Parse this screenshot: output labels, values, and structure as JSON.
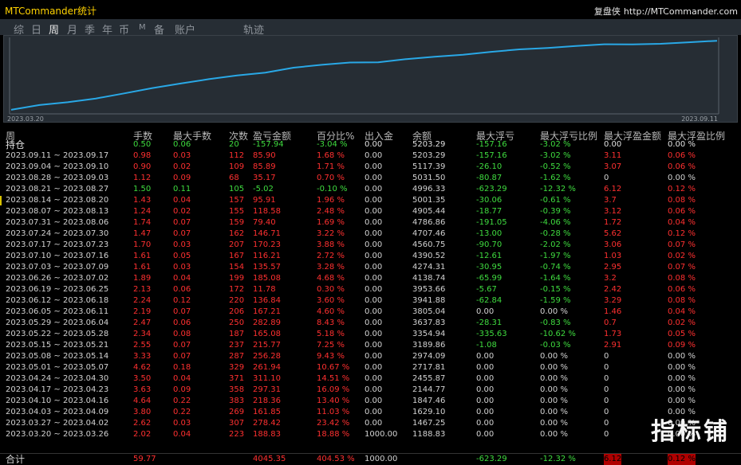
{
  "titlebar": {
    "app_title": "MTCommander统计",
    "brand_name": "复盘侠",
    "brand_url": "http://MTCommander.com"
  },
  "toolbar": {
    "items": [
      "综",
      "日",
      "周",
      "月",
      "季",
      "年",
      "币",
      "M",
      "备",
      "账户",
      "轨迹"
    ],
    "active": "周"
  },
  "chart": {
    "start_label": "2023.03.20",
    "end_label": "2023.09.11",
    "line_color": "#29a8e6",
    "chart_data": {
      "type": "line",
      "title": "",
      "xlabel": "",
      "ylabel": "",
      "x": [
        "2023.03.20",
        "2023.03.27",
        "2023.04.03",
        "2023.04.10",
        "2023.04.17",
        "2023.04.24",
        "2023.05.01",
        "2023.05.08",
        "2023.05.15",
        "2023.05.22",
        "2023.05.29",
        "2023.06.05",
        "2023.06.12",
        "2023.06.19",
        "2023.06.26",
        "2023.07.03",
        "2023.07.10",
        "2023.07.17",
        "2023.07.24",
        "2023.07.31",
        "2023.08.07",
        "2023.08.14",
        "2023.08.21",
        "2023.08.28",
        "2023.09.04",
        "2023.09.11"
      ],
      "series": [
        {
          "values": [
            1188.83,
            1467.25,
            1629.1,
            1847.46,
            2144.77,
            2455.87,
            2717.81,
            2974.09,
            3189.86,
            3354.94,
            3637.83,
            3805.04,
            3941.88,
            3953.66,
            4138.74,
            4274.31,
            4390.52,
            4560.75,
            4707.46,
            4786.86,
            4905.44,
            5001.35,
            4996.33,
            5031.5,
            5117.39,
            5203.29
          ]
        }
      ],
      "ylim": [
        1000,
        5400
      ]
    }
  },
  "table": {
    "headers": [
      "周",
      "手数",
      "最大手数",
      "次数",
      "盈亏金额",
      "百分比%",
      "出入金",
      "余额",
      "最大浮亏",
      "最大浮亏比例",
      "最大浮盈金额",
      "最大浮盈比例"
    ],
    "holding": {
      "label": "持仓",
      "cells": [
        "0.50",
        "0.06",
        "20",
        "-157.94",
        "-3.04 %",
        "0.00",
        "5203.29",
        "-157.16",
        "-3.02 %",
        "0.00",
        "0.00 %"
      ]
    },
    "rows": [
      [
        "2023.09.11 ~ 2023.09.17",
        "0.98",
        "0.03",
        "112",
        "85.90",
        "1.68 %",
        "0.00",
        "5203.29",
        "-157.16",
        "-3.02 %",
        "3.11",
        "0.06 %"
      ],
      [
        "2023.09.04 ~ 2023.09.10",
        "0.90",
        "0.02",
        "109",
        "85.89",
        "1.71 %",
        "0.00",
        "5117.39",
        "-26.10",
        "-0.52 %",
        "3.07",
        "0.06 %"
      ],
      [
        "2023.08.28 ~ 2023.09.03",
        "1.12",
        "0.09",
        "68",
        "35.17",
        "0.70 %",
        "0.00",
        "5031.50",
        "-80.87",
        "-1.62 %",
        "0",
        "0.00 %"
      ],
      [
        "2023.08.21 ~ 2023.08.27",
        "1.50",
        "0.11",
        "105",
        "-5.02",
        "-0.10 %",
        "0.00",
        "4996.33",
        "-623.29",
        "-12.32 %",
        "6.12",
        "0.12 %"
      ],
      [
        "2023.08.14 ~ 2023.08.20",
        "1.43",
        "0.04",
        "157",
        "95.91",
        "1.96 %",
        "0.00",
        "5001.35",
        "-30.06",
        "-0.61 %",
        "3.7",
        "0.08 %"
      ],
      [
        "2023.08.07 ~ 2023.08.13",
        "1.24",
        "0.02",
        "155",
        "118.58",
        "2.48 %",
        "0.00",
        "4905.44",
        "-18.77",
        "-0.39 %",
        "3.12",
        "0.06 %"
      ],
      [
        "2023.07.31 ~ 2023.08.06",
        "1.74",
        "0.07",
        "159",
        "79.40",
        "1.69 %",
        "0.00",
        "4786.86",
        "-191.05",
        "-4.06 %",
        "1.72",
        "0.04 %"
      ],
      [
        "2023.07.24 ~ 2023.07.30",
        "1.47",
        "0.07",
        "162",
        "146.71",
        "3.22 %",
        "0.00",
        "4707.46",
        "-13.00",
        "-0.28 %",
        "5.62",
        "0.12 %"
      ],
      [
        "2023.07.17 ~ 2023.07.23",
        "1.70",
        "0.03",
        "207",
        "170.23",
        "3.88 %",
        "0.00",
        "4560.75",
        "-90.70",
        "-2.02 %",
        "3.06",
        "0.07 %"
      ],
      [
        "2023.07.10 ~ 2023.07.16",
        "1.61",
        "0.05",
        "167",
        "116.21",
        "2.72 %",
        "0.00",
        "4390.52",
        "-12.61",
        "-1.97 %",
        "1.03",
        "0.02 %"
      ],
      [
        "2023.07.03 ~ 2023.07.09",
        "1.61",
        "0.03",
        "154",
        "135.57",
        "3.28 %",
        "0.00",
        "4274.31",
        "-30.95",
        "-0.74 %",
        "2.95",
        "0.07 %"
      ],
      [
        "2023.06.26 ~ 2023.07.02",
        "1.89",
        "0.04",
        "199",
        "185.08",
        "4.68 %",
        "0.00",
        "4138.74",
        "-65.99",
        "-1.64 %",
        "3.2",
        "0.08 %"
      ],
      [
        "2023.06.19 ~ 2023.06.25",
        "2.13",
        "0.06",
        "172",
        "11.78",
        "0.30 %",
        "0.00",
        "3953.66",
        "-5.67",
        "-0.15 %",
        "2.42",
        "0.06 %"
      ],
      [
        "2023.06.12 ~ 2023.06.18",
        "2.24",
        "0.12",
        "220",
        "136.84",
        "3.60 %",
        "0.00",
        "3941.88",
        "-62.84",
        "-1.59 %",
        "3.29",
        "0.08 %"
      ],
      [
        "2023.06.05 ~ 2023.06.11",
        "2.19",
        "0.07",
        "206",
        "167.21",
        "4.60 %",
        "0.00",
        "3805.04",
        "0.00",
        "0.00 %",
        "1.46",
        "0.04 %"
      ],
      [
        "2023.05.29 ~ 2023.06.04",
        "2.47",
        "0.06",
        "250",
        "282.89",
        "8.43 %",
        "0.00",
        "3637.83",
        "-28.31",
        "-0.83 %",
        "0.7",
        "0.02 %"
      ],
      [
        "2023.05.22 ~ 2023.05.28",
        "2.34",
        "0.08",
        "187",
        "165.08",
        "5.18 %",
        "0.00",
        "3354.94",
        "-335.63",
        "-10.62 %",
        "1.73",
        "0.05 %"
      ],
      [
        "2023.05.15 ~ 2023.05.21",
        "2.55",
        "0.07",
        "237",
        "215.77",
        "7.25 %",
        "0.00",
        "3189.86",
        "-1.08",
        "-0.03 %",
        "2.91",
        "0.09 %"
      ],
      [
        "2023.05.08 ~ 2023.05.14",
        "3.33",
        "0.07",
        "287",
        "256.28",
        "9.43 %",
        "0.00",
        "2974.09",
        "0.00",
        "0.00 %",
        "0",
        "0.00 %"
      ],
      [
        "2023.05.01 ~ 2023.05.07",
        "4.62",
        "0.18",
        "329",
        "261.94",
        "10.67 %",
        "0.00",
        "2717.81",
        "0.00",
        "0.00 %",
        "0",
        "0.00 %"
      ],
      [
        "2023.04.24 ~ 2023.04.30",
        "3.50",
        "0.04",
        "371",
        "311.10",
        "14.51 %",
        "0.00",
        "2455.87",
        "0.00",
        "0.00 %",
        "0",
        "0.00 %"
      ],
      [
        "2023.04.17 ~ 2023.04.23",
        "3.63",
        "0.09",
        "358",
        "297.31",
        "16.09 %",
        "0.00",
        "2144.77",
        "0.00",
        "0.00 %",
        "0",
        "0.00 %"
      ],
      [
        "2023.04.10 ~ 2023.04.16",
        "4.64",
        "0.22",
        "383",
        "218.36",
        "13.40 %",
        "0.00",
        "1847.46",
        "0.00",
        "0.00 %",
        "0",
        "0.00 %"
      ],
      [
        "2023.04.03 ~ 2023.04.09",
        "3.80",
        "0.22",
        "269",
        "161.85",
        "11.03 %",
        "0.00",
        "1629.10",
        "0.00",
        "0.00 %",
        "0",
        "0.00 %"
      ],
      [
        "2023.03.27 ~ 2023.04.02",
        "2.62",
        "0.03",
        "307",
        "278.42",
        "23.42 %",
        "0.00",
        "1467.25",
        "0.00",
        "0.00 %",
        "0",
        "0.00 %"
      ],
      [
        "2023.03.20 ~ 2023.03.26",
        "2.02",
        "0.04",
        "223",
        "188.83",
        "18.88 %",
        "1000.00",
        "1188.83",
        "0.00",
        "0.00 %",
        "0",
        "0.00 %"
      ]
    ],
    "total": {
      "label": "合计",
      "cells": [
        "59.77",
        "",
        "",
        "4045.35",
        "404.53 %",
        "1000.00",
        "",
        "-623.29",
        "-12.32 %",
        "6.12",
        "0.12 %"
      ]
    }
  },
  "watermark": "指标铺",
  "colors": {
    "positive": "#ff3030",
    "negative": "#3fdc3f",
    "neutral": "#d2d2d2",
    "title": "#ffd200",
    "panel": "#262d34"
  }
}
